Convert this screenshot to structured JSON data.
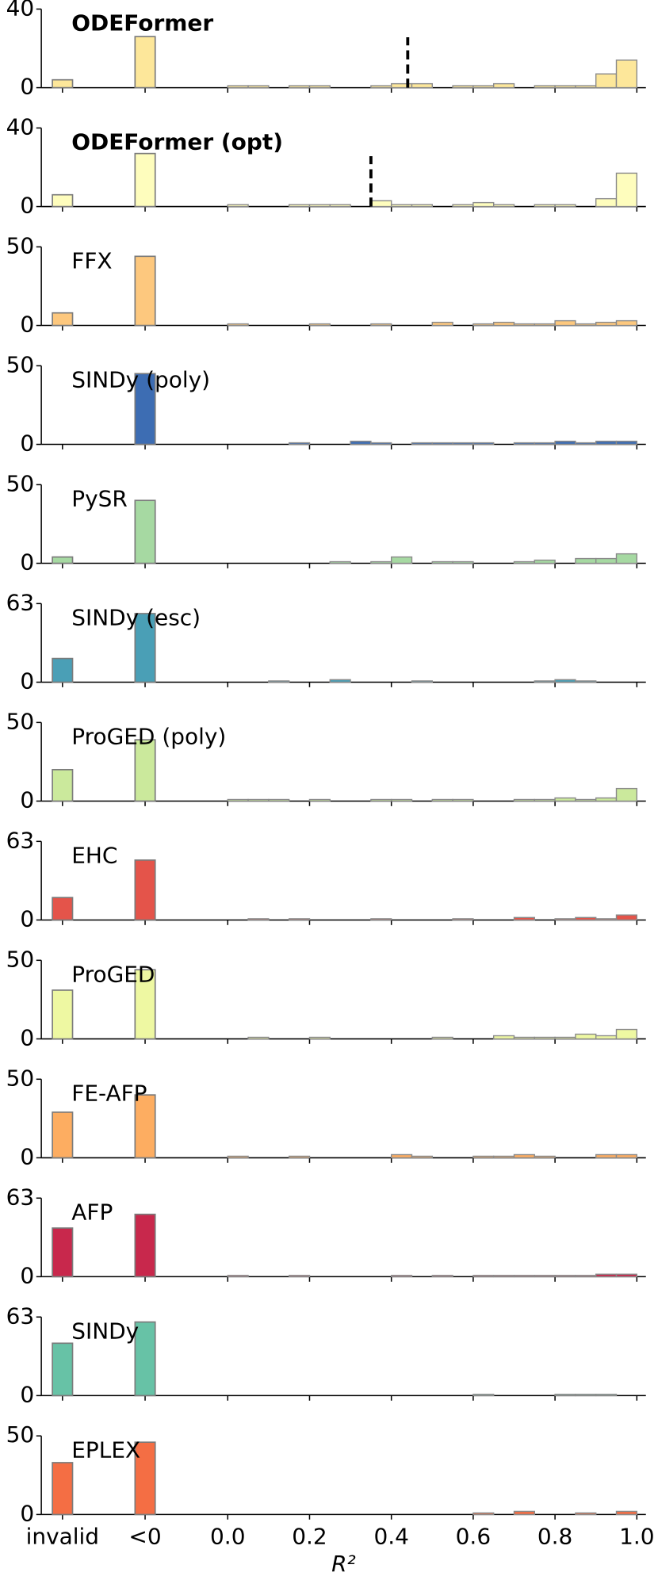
{
  "chart_data": {
    "type": "histogram",
    "xlabel": "R²",
    "categories": [
      "invalid",
      "<0"
    ],
    "xlim": [
      0,
      1
    ],
    "xticks": [
      {
        "value": 0,
        "label": "0.0"
      },
      {
        "value": 0.2,
        "label": "0.2"
      },
      {
        "value": 0.4,
        "label": "0.4"
      },
      {
        "value": 0.6,
        "label": "0.6"
      },
      {
        "value": 0.8,
        "label": "0.8"
      },
      {
        "value": 1,
        "label": "1.0"
      }
    ],
    "bins": [
      0,
      0.05,
      0.1,
      0.15,
      0.2,
      0.25,
      0.3,
      0.35,
      0.4,
      0.45,
      0.5,
      0.55,
      0.6,
      0.65,
      0.7,
      0.75,
      0.8,
      0.85,
      0.9,
      0.95,
      1
    ],
    "panels": [
      {
        "name": "ODEFormer",
        "bold": true,
        "color": "#fde79a",
        "ylim": [
          0,
          40
        ],
        "yticks": [
          0,
          40
        ],
        "category_values": [
          4,
          26
        ],
        "values": [
          1,
          1,
          0,
          1,
          1,
          0,
          0,
          1,
          2,
          2,
          0,
          1,
          1,
          2,
          0,
          1,
          1,
          1,
          7,
          14
        ],
        "median": 0.44
      },
      {
        "name": "ODEFormer (opt)",
        "bold": true,
        "color": "#fefdbd",
        "ylim": [
          0,
          40
        ],
        "yticks": [
          0,
          40
        ],
        "category_values": [
          6,
          27
        ],
        "values": [
          1,
          0,
          0,
          1,
          1,
          1,
          0,
          3,
          1,
          1,
          0,
          1,
          2,
          1,
          0,
          1,
          1,
          0,
          4,
          17
        ],
        "median": 0.35
      },
      {
        "name": "FFX",
        "bold": false,
        "color": "#fdc87e",
        "ylim": [
          0,
          50
        ],
        "yticks": [
          0,
          50
        ],
        "category_values": [
          8,
          44
        ],
        "values": [
          1,
          0,
          0,
          0,
          1,
          0,
          0,
          1,
          0,
          0,
          2,
          0,
          1,
          2,
          1,
          1,
          3,
          1,
          2,
          3
        ]
      },
      {
        "name": "SINDy (poly)",
        "bold": false,
        "color": "#3d6db3",
        "ylim": [
          0,
          50
        ],
        "yticks": [
          0,
          50
        ],
        "category_values": [
          0,
          45
        ],
        "values": [
          0,
          0,
          0,
          1,
          0,
          0,
          2,
          1,
          0,
          1,
          1,
          1,
          1,
          0,
          1,
          1,
          2,
          1,
          2,
          2
        ]
      },
      {
        "name": "PySR",
        "bold": false,
        "color": "#a6d9a2",
        "ylim": [
          0,
          50
        ],
        "yticks": [
          0,
          50
        ],
        "category_values": [
          4,
          40
        ],
        "values": [
          0,
          0,
          0,
          0,
          0,
          1,
          0,
          1,
          4,
          0,
          1,
          1,
          0,
          0,
          1,
          2,
          0,
          3,
          3,
          6
        ]
      },
      {
        "name": "SINDy (esc)",
        "bold": false,
        "color": "#4a9fb6",
        "ylim": [
          0,
          63
        ],
        "yticks": [
          0,
          63
        ],
        "category_values": [
          19,
          55
        ],
        "values": [
          0,
          0,
          1,
          0,
          0,
          2,
          0,
          0,
          0,
          1,
          0,
          0,
          0,
          0,
          0,
          1,
          2,
          1,
          0,
          0
        ]
      },
      {
        "name": "ProGED (poly)",
        "bold": false,
        "color": "#cbe99c",
        "ylim": [
          0,
          50
        ],
        "yticks": [
          0,
          50
        ],
        "category_values": [
          20,
          39
        ],
        "values": [
          1,
          1,
          1,
          0,
          1,
          0,
          0,
          1,
          1,
          0,
          1,
          1,
          0,
          0,
          1,
          1,
          2,
          1,
          2,
          8
        ]
      },
      {
        "name": "EHC",
        "bold": false,
        "color": "#e4544a",
        "ylim": [
          0,
          63
        ],
        "yticks": [
          0,
          63
        ],
        "category_values": [
          18,
          48
        ],
        "values": [
          0,
          1,
          0,
          1,
          0,
          0,
          0,
          1,
          0,
          0,
          0,
          1,
          0,
          0,
          2,
          0,
          1,
          2,
          1,
          4
        ]
      },
      {
        "name": "ProGED",
        "bold": false,
        "color": "#eef8a2",
        "ylim": [
          0,
          50
        ],
        "yticks": [
          0,
          50
        ],
        "category_values": [
          31,
          44
        ],
        "values": [
          0,
          1,
          0,
          0,
          1,
          0,
          0,
          0,
          0,
          0,
          1,
          0,
          0,
          2,
          1,
          1,
          1,
          3,
          2,
          6
        ]
      },
      {
        "name": "FE-AFP",
        "bold": false,
        "color": "#fdad61",
        "ylim": [
          0,
          50
        ],
        "yticks": [
          0,
          50
        ],
        "category_values": [
          29,
          40
        ],
        "values": [
          1,
          0,
          0,
          1,
          0,
          0,
          0,
          0,
          2,
          1,
          0,
          0,
          1,
          1,
          2,
          1,
          0,
          0,
          2,
          2
        ]
      },
      {
        "name": "AFP",
        "bold": false,
        "color": "#c8284c",
        "ylim": [
          0,
          63
        ],
        "yticks": [
          0,
          63
        ],
        "category_values": [
          39,
          50
        ],
        "values": [
          1,
          0,
          0,
          1,
          0,
          0,
          0,
          0,
          1,
          0,
          1,
          0,
          1,
          1,
          1,
          1,
          1,
          1,
          2,
          2
        ]
      },
      {
        "name": "SINDy",
        "bold": false,
        "color": "#67c2a6",
        "ylim": [
          0,
          63
        ],
        "yticks": [
          0,
          63
        ],
        "category_values": [
          42,
          59
        ],
        "values": [
          0,
          0,
          0,
          0,
          0,
          0,
          0,
          0,
          0,
          0,
          0,
          0,
          1,
          0,
          0,
          0,
          1,
          1,
          1,
          0
        ]
      },
      {
        "name": "EPLEX",
        "bold": false,
        "color": "#f46e44",
        "ylim": [
          0,
          50
        ],
        "yticks": [
          0,
          50
        ],
        "category_values": [
          33,
          46
        ],
        "values": [
          0,
          0,
          0,
          0,
          0,
          0,
          0,
          0,
          0,
          0,
          0,
          0,
          1,
          0,
          2,
          0,
          0,
          1,
          0,
          2
        ]
      }
    ]
  }
}
